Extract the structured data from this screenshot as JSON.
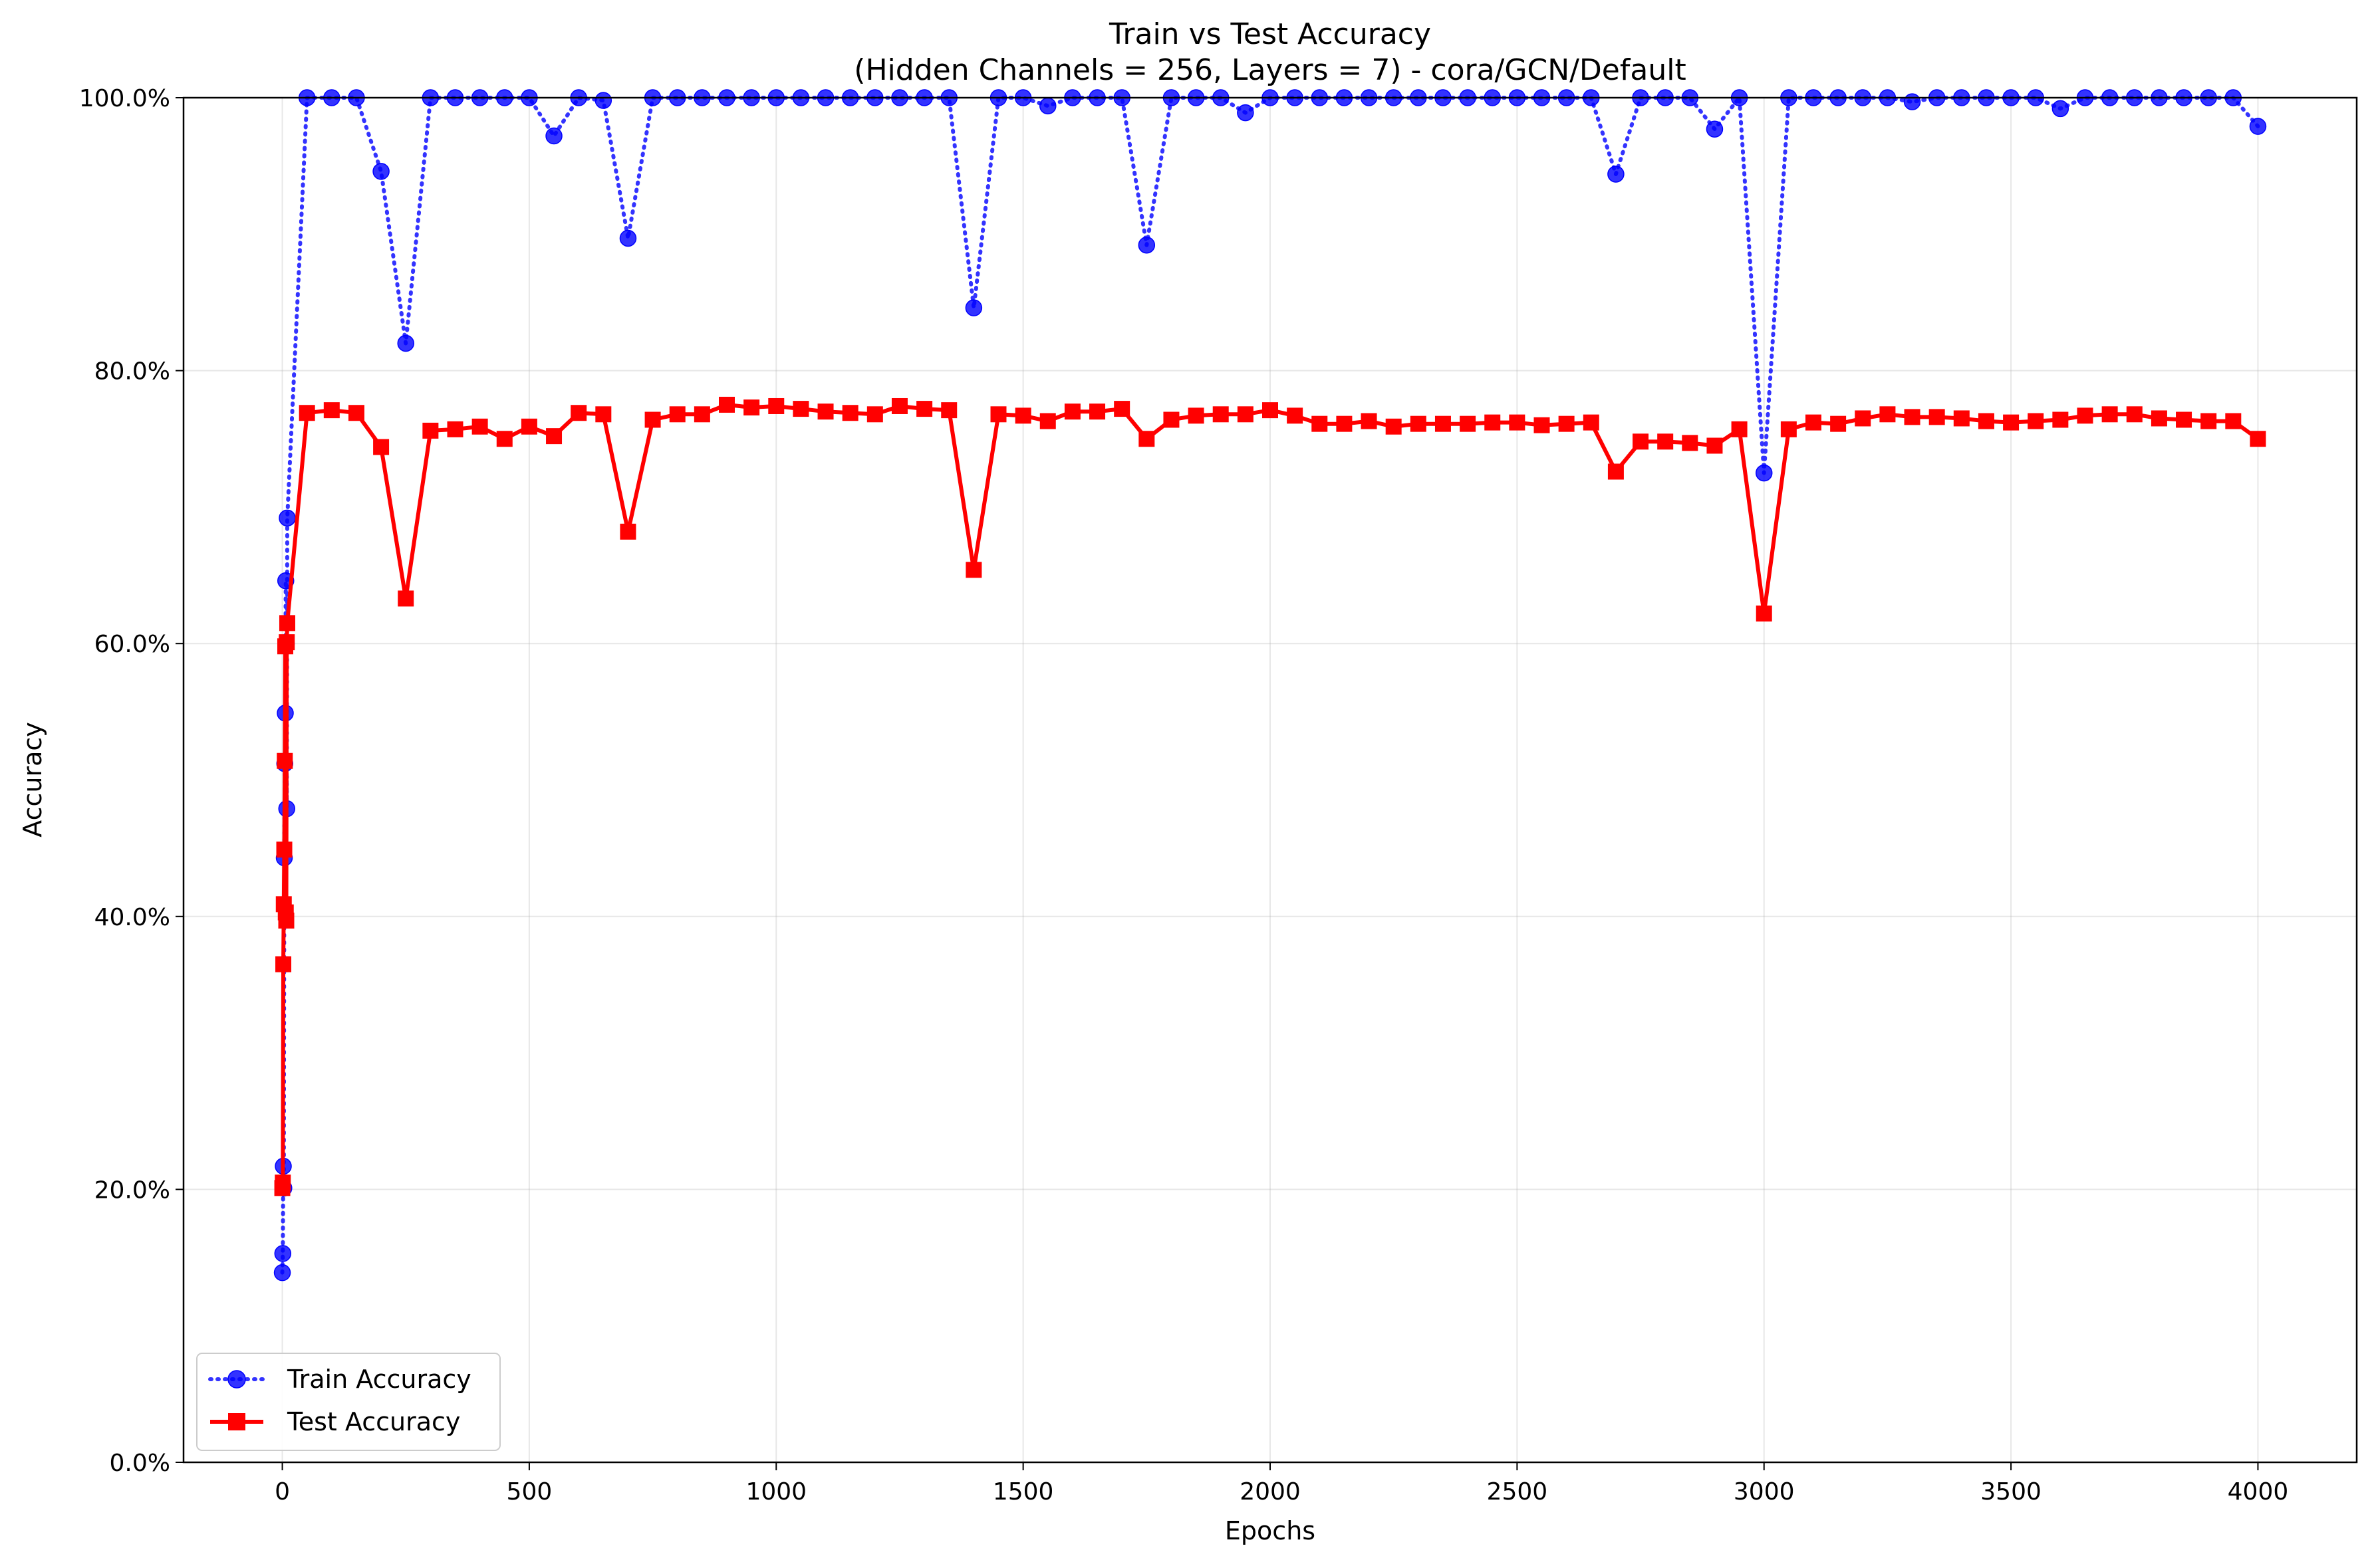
{
  "chart_data": {
    "type": "line",
    "title": "Train vs Test Accuracy",
    "subtitle": "(Hidden Channels = 256, Layers = 7) - cora/GCN/Default",
    "xlabel": "Epochs",
    "ylabel": "Accuracy",
    "xlim": [
      -200,
      4200
    ],
    "ylim": [
      0,
      1
    ],
    "xticks": [
      0,
      500,
      1000,
      1500,
      2000,
      2500,
      3000,
      3500,
      4000
    ],
    "xtick_labels": [
      "0",
      "500",
      "1000",
      "1500",
      "2000",
      "2500",
      "3000",
      "3500",
      "4000"
    ],
    "yticks": [
      0,
      0.2,
      0.4,
      0.6,
      0.8,
      1.0
    ],
    "ytick_labels": [
      "0.0%",
      "20.0%",
      "40.0%",
      "60.0%",
      "80.0%",
      "100.0%"
    ],
    "grid": true,
    "legend_position": "lower-left",
    "series": [
      {
        "name": "Train Accuracy",
        "color": "#0000ff",
        "line_style": "dotted",
        "marker": "circle",
        "x": [
          0,
          1,
          2,
          3,
          4,
          5,
          6,
          7,
          8,
          9,
          10,
          50,
          100,
          150,
          200,
          250,
          300,
          350,
          400,
          450,
          500,
          550,
          600,
          650,
          700,
          750,
          800,
          850,
          900,
          950,
          1000,
          1050,
          1100,
          1150,
          1200,
          1250,
          1300,
          1350,
          1400,
          1450,
          1500,
          1550,
          1600,
          1650,
          1700,
          1750,
          1800,
          1850,
          1900,
          1950,
          2000,
          2050,
          2100,
          2150,
          2200,
          2250,
          2300,
          2350,
          2400,
          2450,
          2500,
          2550,
          2600,
          2650,
          2700,
          2750,
          2800,
          2850,
          2900,
          2950,
          3000,
          3050,
          3100,
          3150,
          3200,
          3250,
          3300,
          3350,
          3400,
          3450,
          3500,
          3550,
          3600,
          3650,
          3700,
          3750,
          3800,
          3850,
          3900,
          3950,
          4000
        ],
        "y": [
          0.139,
          0.153,
          0.217,
          0.201,
          0.443,
          0.512,
          0.549,
          0.646,
          0.6,
          0.479,
          0.692,
          1.0,
          1.0,
          1.0,
          0.946,
          0.82,
          1.0,
          1.0,
          1.0,
          1.0,
          1.0,
          0.972,
          1.0,
          0.998,
          0.897,
          1.0,
          1.0,
          1.0,
          1.0,
          1.0,
          1.0,
          1.0,
          1.0,
          1.0,
          1.0,
          1.0,
          1.0,
          1.0,
          0.846,
          1.0,
          1.0,
          0.994,
          1.0,
          1.0,
          1.0,
          0.892,
          1.0,
          1.0,
          1.0,
          0.989,
          1.0,
          1.0,
          1.0,
          1.0,
          1.0,
          1.0,
          1.0,
          1.0,
          1.0,
          1.0,
          1.0,
          1.0,
          1.0,
          1.0,
          0.944,
          1.0,
          1.0,
          1.0,
          0.977,
          1.0,
          0.725,
          1.0,
          1.0,
          1.0,
          1.0,
          1.0,
          0.997,
          1.0,
          1.0,
          1.0,
          1.0,
          1.0,
          0.992,
          1.0,
          1.0,
          1.0,
          1.0,
          1.0,
          1.0,
          1.0,
          0.979
        ]
      },
      {
        "name": "Test Accuracy",
        "color": "#ff0000",
        "line_style": "solid",
        "marker": "square",
        "x": [
          0,
          1,
          2,
          3,
          4,
          5,
          6,
          7,
          8,
          9,
          10,
          50,
          100,
          150,
          200,
          250,
          300,
          350,
          400,
          450,
          500,
          550,
          600,
          650,
          700,
          750,
          800,
          850,
          900,
          950,
          1000,
          1050,
          1100,
          1150,
          1200,
          1250,
          1300,
          1350,
          1400,
          1450,
          1500,
          1550,
          1600,
          1650,
          1700,
          1750,
          1800,
          1850,
          1900,
          1950,
          2000,
          2050,
          2100,
          2150,
          2200,
          2250,
          2300,
          2350,
          2400,
          2450,
          2500,
          2550,
          2600,
          2650,
          2700,
          2750,
          2800,
          2850,
          2900,
          2950,
          3000,
          3050,
          3100,
          3150,
          3200,
          3250,
          3300,
          3350,
          3400,
          3450,
          3500,
          3550,
          3600,
          3650,
          3700,
          3750,
          3800,
          3850,
          3900,
          3950,
          4000
        ],
        "y": [
          0.201,
          0.205,
          0.365,
          0.409,
          0.449,
          0.514,
          0.598,
          0.403,
          0.397,
          0.601,
          0.615,
          0.769,
          0.771,
          0.769,
          0.744,
          0.633,
          0.756,
          0.757,
          0.759,
          0.75,
          0.759,
          0.752,
          0.769,
          0.768,
          0.682,
          0.764,
          0.768,
          0.768,
          0.775,
          0.773,
          0.774,
          0.772,
          0.77,
          0.769,
          0.768,
          0.774,
          0.772,
          0.771,
          0.654,
          0.768,
          0.767,
          0.763,
          0.77,
          0.77,
          0.772,
          0.75,
          0.764,
          0.767,
          0.768,
          0.768,
          0.771,
          0.767,
          0.761,
          0.761,
          0.763,
          0.759,
          0.761,
          0.761,
          0.761,
          0.762,
          0.762,
          0.76,
          0.761,
          0.762,
          0.726,
          0.748,
          0.748,
          0.747,
          0.745,
          0.757,
          0.622,
          0.757,
          0.762,
          0.761,
          0.765,
          0.768,
          0.766,
          0.766,
          0.765,
          0.763,
          0.762,
          0.763,
          0.764,
          0.767,
          0.768,
          0.768,
          0.765,
          0.764,
          0.763,
          0.763,
          0.75
        ]
      }
    ]
  }
}
